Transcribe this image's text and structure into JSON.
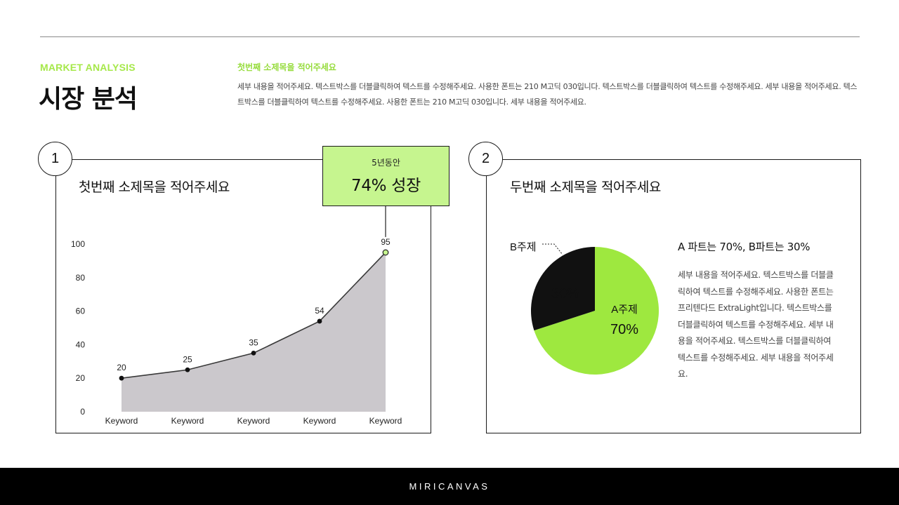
{
  "header": {
    "eyebrow": "MARKET ANALYSIS",
    "title": "시장 분석",
    "subtitle": "첫번째 소제목을 적어주세요",
    "body": "세부 내용을 적어주세요. 텍스트박스를 더블클릭하여 텍스트를 수정해주세요. 사용한 폰트는 210 M고딕 030입니다. 텍스트박스를 더블클릭하여 텍스트를 수정해주세요. 세부 내용을 적어주세요. 텍스트박스를 더블클릭하여 텍스트를 수정해주세요. 사용한 폰트는 210 M고딕 030입니다. 세부 내용을 적어주세요."
  },
  "panel1": {
    "number": "1",
    "title": "첫번째 소제목을 적어주세요",
    "callout_small": "5년동안",
    "callout_big": "74% 성장"
  },
  "panel2": {
    "number": "2",
    "title": "두번째 소제목을 적어주세요",
    "pie_heading": "A 파트는 70%, B파트는 30%",
    "pie_desc": "세부 내용을 적어주세요. 텍스트박스를 더블클릭하여 텍스트를 수정해주세요. 사용한 폰트는 프리텐다드 ExtraLight입니다. 텍스트박스를 더블클릭하여 텍스트를 수정해주세요. 세부 내용을 적어주세요. 텍스트박스를 더블클릭하여 텍스트를 수정해주세요. 세부 내용을 적어주세요."
  },
  "footer": {
    "brand": "MIRICANVAS"
  },
  "colors": {
    "accent_green": "#9ee83f",
    "callout_green": "#c6f58f",
    "area_fill": "#cbc8cc",
    "dark": "#111111"
  },
  "chart_data": [
    {
      "type": "area",
      "categories": [
        "Keyword",
        "Keyword",
        "Keyword",
        "Keyword",
        "Keyword"
      ],
      "values": [
        20,
        25,
        35,
        54,
        95
      ],
      "data_labels": [
        "20",
        "25",
        "35",
        "54",
        "95"
      ],
      "y_ticks": [
        "0",
        "20",
        "40",
        "60",
        "80",
        "100"
      ],
      "ylim": [
        0,
        100
      ],
      "grid": false
    },
    {
      "type": "pie",
      "slices": [
        {
          "name": "A주제",
          "value": 70,
          "label": "70%",
          "color": "#9ee83f"
        },
        {
          "name": "B주제",
          "value": 30,
          "label": "30%",
          "color": "#111111"
        }
      ]
    }
  ]
}
